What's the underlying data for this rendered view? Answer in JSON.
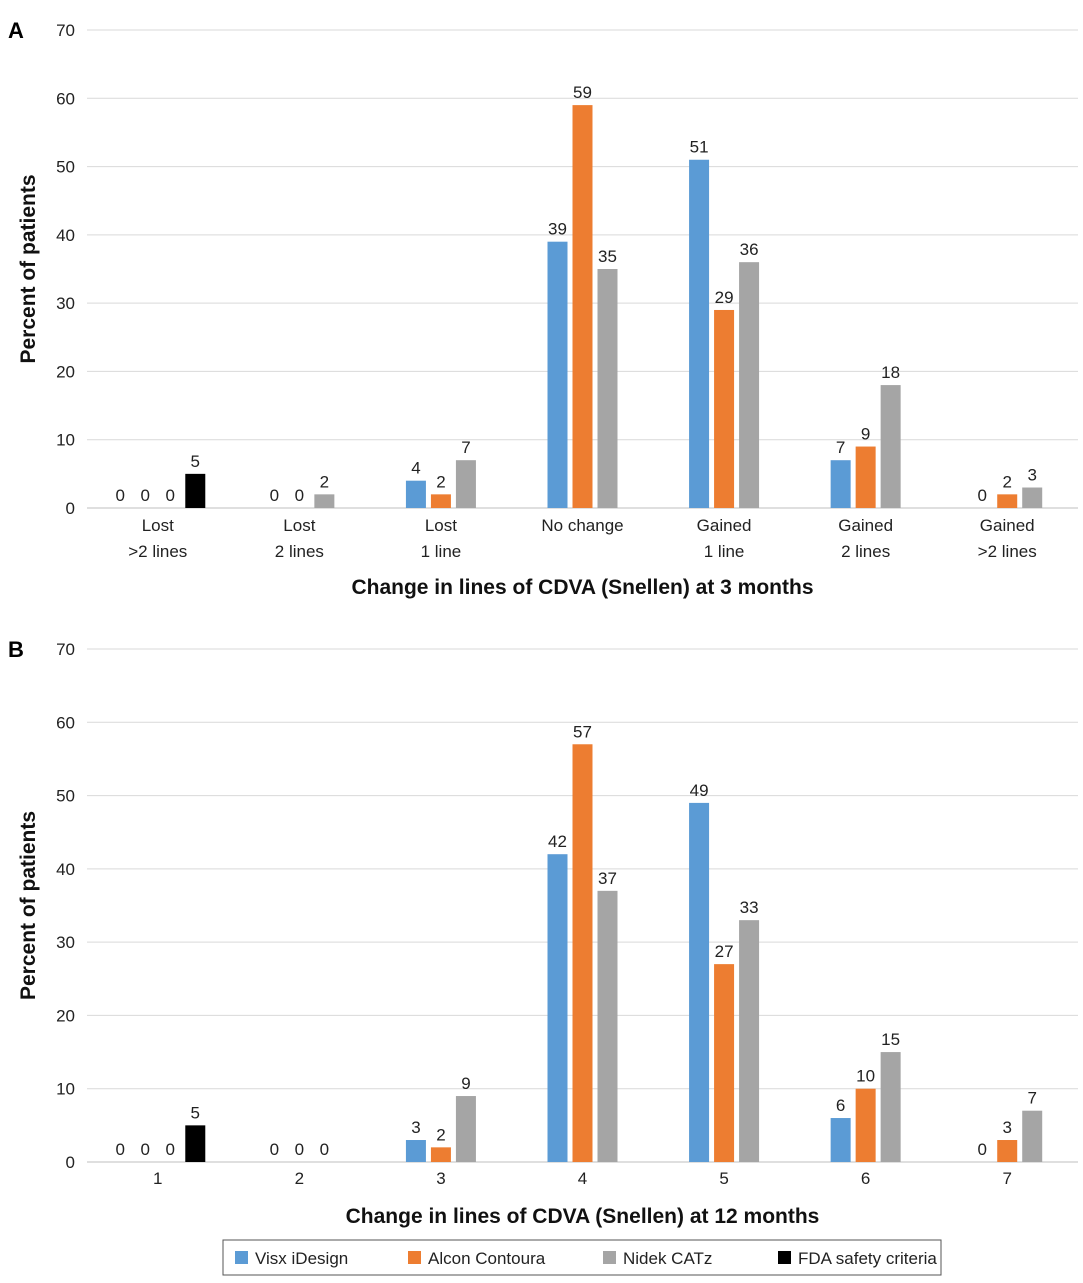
{
  "colors": {
    "grid": "#d9d9d9",
    "axis": "#bfbfbf",
    "legend_border": "#555555"
  },
  "legend": {
    "items": [
      {
        "label": "Visx iDesign",
        "color": "#5b9bd5"
      },
      {
        "label": "Alcon Contoura",
        "color": "#ed7d31"
      },
      {
        "label": "Nidek CATz",
        "color": "#a5a5a5"
      },
      {
        "label": "FDA safety criteria",
        "color": "#000000"
      }
    ]
  },
  "chart_data": [
    {
      "type": "bar",
      "panel_label": "A",
      "xlabel": "Change in lines of CDVA (Snellen) at 3 months",
      "ylabel": "Percent of patients",
      "ylim": [
        0,
        70
      ],
      "yticks": [
        0,
        10,
        20,
        30,
        40,
        50,
        60,
        70
      ],
      "grid": true,
      "categories": [
        [
          "Lost",
          ">2 lines"
        ],
        [
          "Lost",
          "2 lines"
        ],
        [
          "Lost",
          "1 line"
        ],
        [
          "No change"
        ],
        [
          "Gained",
          "1 line"
        ],
        [
          "Gained",
          "2 lines"
        ],
        [
          "Gained",
          ">2 lines"
        ]
      ],
      "series": [
        {
          "name": "Visx iDesign",
          "values": [
            0,
            0,
            4,
            39,
            51,
            7,
            0
          ]
        },
        {
          "name": "Alcon Contoura",
          "values": [
            0,
            0,
            2,
            59,
            29,
            9,
            2
          ]
        },
        {
          "name": "Nidek CATz",
          "values": [
            0,
            2,
            7,
            35,
            36,
            18,
            3
          ]
        },
        {
          "name": "FDA safety criteria",
          "values": [
            5,
            null,
            null,
            null,
            null,
            null,
            null
          ]
        }
      ]
    },
    {
      "type": "bar",
      "panel_label": "B",
      "xlabel": "Change in lines of CDVA (Snellen) at 12 months",
      "ylabel": "Percent of patients",
      "ylim": [
        0,
        70
      ],
      "yticks": [
        0,
        10,
        20,
        30,
        40,
        50,
        60,
        70
      ],
      "grid": true,
      "categories": [
        [
          "1"
        ],
        [
          "2"
        ],
        [
          "3"
        ],
        [
          "4"
        ],
        [
          "5"
        ],
        [
          "6"
        ],
        [
          "7"
        ]
      ],
      "series": [
        {
          "name": "Visx iDesign",
          "values": [
            0,
            0,
            3,
            42,
            49,
            6,
            0
          ]
        },
        {
          "name": "Alcon Contoura",
          "values": [
            0,
            0,
            2,
            57,
            27,
            10,
            3
          ]
        },
        {
          "name": "Nidek CATz",
          "values": [
            0,
            0,
            9,
            37,
            33,
            15,
            7
          ]
        },
        {
          "name": "FDA safety criteria",
          "values": [
            5,
            null,
            null,
            null,
            null,
            null,
            null
          ]
        }
      ]
    }
  ]
}
